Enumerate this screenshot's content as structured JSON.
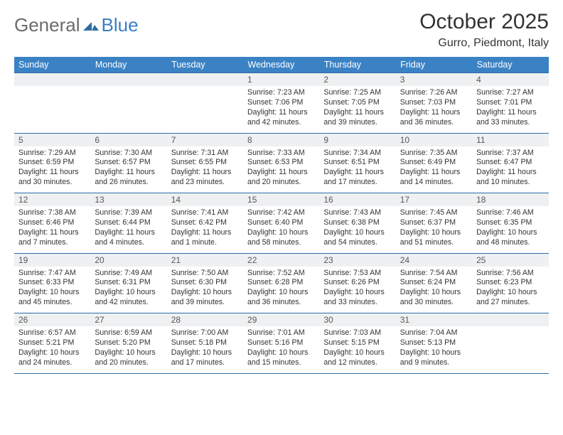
{
  "logo": {
    "text1": "General",
    "text2": "Blue"
  },
  "title": "October 2025",
  "subtitle": "Gurro, Piedmont, Italy",
  "colors": {
    "header_bg": "#3b82c4",
    "header_text": "#ffffff",
    "daynum_bg": "#eef0f2",
    "border": "#2e6da4",
    "body_text": "#333333"
  },
  "day_names": [
    "Sunday",
    "Monday",
    "Tuesday",
    "Wednesday",
    "Thursday",
    "Friday",
    "Saturday"
  ],
  "weeks": [
    [
      {
        "n": "",
        "sr": "",
        "ss": "",
        "dl": ""
      },
      {
        "n": "",
        "sr": "",
        "ss": "",
        "dl": ""
      },
      {
        "n": "",
        "sr": "",
        "ss": "",
        "dl": ""
      },
      {
        "n": "1",
        "sr": "Sunrise: 7:23 AM",
        "ss": "Sunset: 7:06 PM",
        "dl": "Daylight: 11 hours and 42 minutes."
      },
      {
        "n": "2",
        "sr": "Sunrise: 7:25 AM",
        "ss": "Sunset: 7:05 PM",
        "dl": "Daylight: 11 hours and 39 minutes."
      },
      {
        "n": "3",
        "sr": "Sunrise: 7:26 AM",
        "ss": "Sunset: 7:03 PM",
        "dl": "Daylight: 11 hours and 36 minutes."
      },
      {
        "n": "4",
        "sr": "Sunrise: 7:27 AM",
        "ss": "Sunset: 7:01 PM",
        "dl": "Daylight: 11 hours and 33 minutes."
      }
    ],
    [
      {
        "n": "5",
        "sr": "Sunrise: 7:29 AM",
        "ss": "Sunset: 6:59 PM",
        "dl": "Daylight: 11 hours and 30 minutes."
      },
      {
        "n": "6",
        "sr": "Sunrise: 7:30 AM",
        "ss": "Sunset: 6:57 PM",
        "dl": "Daylight: 11 hours and 26 minutes."
      },
      {
        "n": "7",
        "sr": "Sunrise: 7:31 AM",
        "ss": "Sunset: 6:55 PM",
        "dl": "Daylight: 11 hours and 23 minutes."
      },
      {
        "n": "8",
        "sr": "Sunrise: 7:33 AM",
        "ss": "Sunset: 6:53 PM",
        "dl": "Daylight: 11 hours and 20 minutes."
      },
      {
        "n": "9",
        "sr": "Sunrise: 7:34 AM",
        "ss": "Sunset: 6:51 PM",
        "dl": "Daylight: 11 hours and 17 minutes."
      },
      {
        "n": "10",
        "sr": "Sunrise: 7:35 AM",
        "ss": "Sunset: 6:49 PM",
        "dl": "Daylight: 11 hours and 14 minutes."
      },
      {
        "n": "11",
        "sr": "Sunrise: 7:37 AM",
        "ss": "Sunset: 6:47 PM",
        "dl": "Daylight: 11 hours and 10 minutes."
      }
    ],
    [
      {
        "n": "12",
        "sr": "Sunrise: 7:38 AM",
        "ss": "Sunset: 6:46 PM",
        "dl": "Daylight: 11 hours and 7 minutes."
      },
      {
        "n": "13",
        "sr": "Sunrise: 7:39 AM",
        "ss": "Sunset: 6:44 PM",
        "dl": "Daylight: 11 hours and 4 minutes."
      },
      {
        "n": "14",
        "sr": "Sunrise: 7:41 AM",
        "ss": "Sunset: 6:42 PM",
        "dl": "Daylight: 11 hours and 1 minute."
      },
      {
        "n": "15",
        "sr": "Sunrise: 7:42 AM",
        "ss": "Sunset: 6:40 PM",
        "dl": "Daylight: 10 hours and 58 minutes."
      },
      {
        "n": "16",
        "sr": "Sunrise: 7:43 AM",
        "ss": "Sunset: 6:38 PM",
        "dl": "Daylight: 10 hours and 54 minutes."
      },
      {
        "n": "17",
        "sr": "Sunrise: 7:45 AM",
        "ss": "Sunset: 6:37 PM",
        "dl": "Daylight: 10 hours and 51 minutes."
      },
      {
        "n": "18",
        "sr": "Sunrise: 7:46 AM",
        "ss": "Sunset: 6:35 PM",
        "dl": "Daylight: 10 hours and 48 minutes."
      }
    ],
    [
      {
        "n": "19",
        "sr": "Sunrise: 7:47 AM",
        "ss": "Sunset: 6:33 PM",
        "dl": "Daylight: 10 hours and 45 minutes."
      },
      {
        "n": "20",
        "sr": "Sunrise: 7:49 AM",
        "ss": "Sunset: 6:31 PM",
        "dl": "Daylight: 10 hours and 42 minutes."
      },
      {
        "n": "21",
        "sr": "Sunrise: 7:50 AM",
        "ss": "Sunset: 6:30 PM",
        "dl": "Daylight: 10 hours and 39 minutes."
      },
      {
        "n": "22",
        "sr": "Sunrise: 7:52 AM",
        "ss": "Sunset: 6:28 PM",
        "dl": "Daylight: 10 hours and 36 minutes."
      },
      {
        "n": "23",
        "sr": "Sunrise: 7:53 AM",
        "ss": "Sunset: 6:26 PM",
        "dl": "Daylight: 10 hours and 33 minutes."
      },
      {
        "n": "24",
        "sr": "Sunrise: 7:54 AM",
        "ss": "Sunset: 6:24 PM",
        "dl": "Daylight: 10 hours and 30 minutes."
      },
      {
        "n": "25",
        "sr": "Sunrise: 7:56 AM",
        "ss": "Sunset: 6:23 PM",
        "dl": "Daylight: 10 hours and 27 minutes."
      }
    ],
    [
      {
        "n": "26",
        "sr": "Sunrise: 6:57 AM",
        "ss": "Sunset: 5:21 PM",
        "dl": "Daylight: 10 hours and 24 minutes."
      },
      {
        "n": "27",
        "sr": "Sunrise: 6:59 AM",
        "ss": "Sunset: 5:20 PM",
        "dl": "Daylight: 10 hours and 20 minutes."
      },
      {
        "n": "28",
        "sr": "Sunrise: 7:00 AM",
        "ss": "Sunset: 5:18 PM",
        "dl": "Daylight: 10 hours and 17 minutes."
      },
      {
        "n": "29",
        "sr": "Sunrise: 7:01 AM",
        "ss": "Sunset: 5:16 PM",
        "dl": "Daylight: 10 hours and 15 minutes."
      },
      {
        "n": "30",
        "sr": "Sunrise: 7:03 AM",
        "ss": "Sunset: 5:15 PM",
        "dl": "Daylight: 10 hours and 12 minutes."
      },
      {
        "n": "31",
        "sr": "Sunrise: 7:04 AM",
        "ss": "Sunset: 5:13 PM",
        "dl": "Daylight: 10 hours and 9 minutes."
      },
      {
        "n": "",
        "sr": "",
        "ss": "",
        "dl": ""
      }
    ]
  ]
}
